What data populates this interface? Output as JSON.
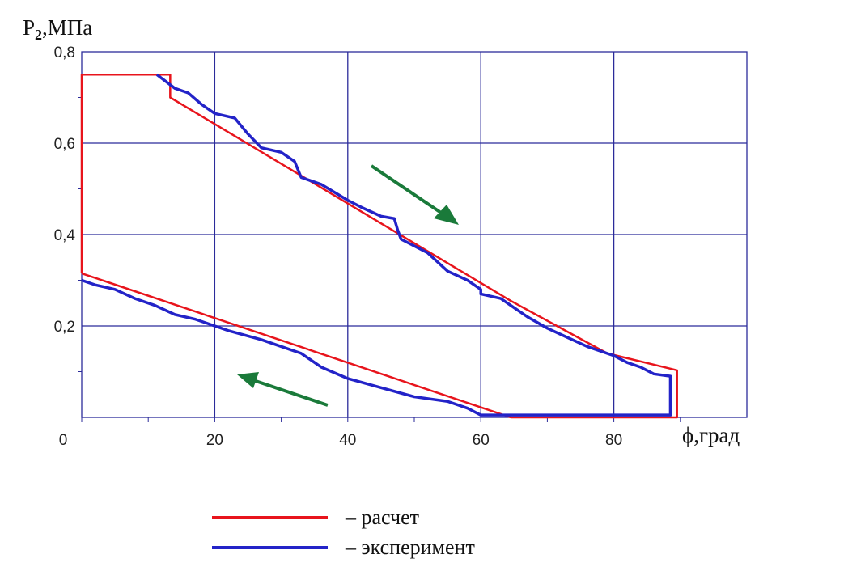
{
  "chart_data": {
    "type": "line",
    "title": "",
    "xlabel": "ϕ,град",
    "ylabel_main": "P",
    "ylabel_sub": "2",
    "ylabel_unit": ",МПа",
    "xlim": [
      0,
      100
    ],
    "ylim": [
      0,
      0.8
    ],
    "xticks": [
      0,
      20,
      40,
      60,
      80
    ],
    "xtick_labels": [
      "0",
      "20",
      "40",
      "60",
      "80"
    ],
    "yticks": [
      0.2,
      0.4,
      0.6,
      0.8
    ],
    "ytick_labels": [
      "0,2",
      "0,4",
      "0,6",
      "0,8"
    ],
    "grid": true,
    "legend_position": "bottom-center",
    "series": [
      {
        "name": "– расчет",
        "color": "#e8141c",
        "points": [
          [
            0,
            0.315
          ],
          [
            0,
            0.75
          ],
          [
            13.3,
            0.75
          ],
          [
            13.3,
            0.7
          ],
          [
            64.5,
            0.255
          ],
          [
            79,
            0.14
          ],
          [
            89.5,
            0.103
          ],
          [
            89.5,
            0
          ],
          [
            64.5,
            0
          ],
          [
            0,
            0.315
          ]
        ]
      },
      {
        "name": "–  эксперимент",
        "color": "#2323c8",
        "points": [
          [
            11.3,
            0.75
          ],
          [
            14,
            0.72
          ],
          [
            16,
            0.71
          ],
          [
            18,
            0.685
          ],
          [
            20,
            0.665
          ],
          [
            23,
            0.655
          ],
          [
            25,
            0.62
          ],
          [
            27,
            0.59
          ],
          [
            30,
            0.58
          ],
          [
            32,
            0.56
          ],
          [
            33,
            0.525
          ],
          [
            36,
            0.51
          ],
          [
            40,
            0.475
          ],
          [
            42,
            0.46
          ],
          [
            45,
            0.44
          ],
          [
            47,
            0.435
          ],
          [
            47.5,
            0.41
          ],
          [
            48,
            0.39
          ],
          [
            52,
            0.36
          ],
          [
            55,
            0.32
          ],
          [
            58,
            0.3
          ],
          [
            60,
            0.28
          ],
          [
            60,
            0.27
          ],
          [
            63,
            0.26
          ],
          [
            65,
            0.24
          ],
          [
            67,
            0.22
          ],
          [
            70,
            0.195
          ],
          [
            73,
            0.175
          ],
          [
            76,
            0.155
          ],
          [
            80,
            0.135
          ],
          [
            82,
            0.12
          ],
          [
            84,
            0.11
          ],
          [
            86,
            0.095
          ],
          [
            88.5,
            0.09
          ],
          [
            88.5,
            0.005
          ],
          [
            60,
            0.005
          ],
          [
            58,
            0.02
          ],
          [
            55,
            0.035
          ],
          [
            50,
            0.045
          ],
          [
            45,
            0.065
          ],
          [
            40,
            0.085
          ],
          [
            36,
            0.11
          ],
          [
            33,
            0.14
          ],
          [
            30,
            0.155
          ],
          [
            27,
            0.17
          ],
          [
            22,
            0.19
          ],
          [
            20,
            0.2
          ],
          [
            17,
            0.215
          ],
          [
            14,
            0.225
          ],
          [
            11,
            0.245
          ],
          [
            8,
            0.26
          ],
          [
            5,
            0.28
          ],
          [
            2,
            0.29
          ],
          [
            0,
            0.3
          ]
        ]
      }
    ],
    "annotations": [
      "arrow-down-right",
      "arrow-up-left"
    ]
  }
}
